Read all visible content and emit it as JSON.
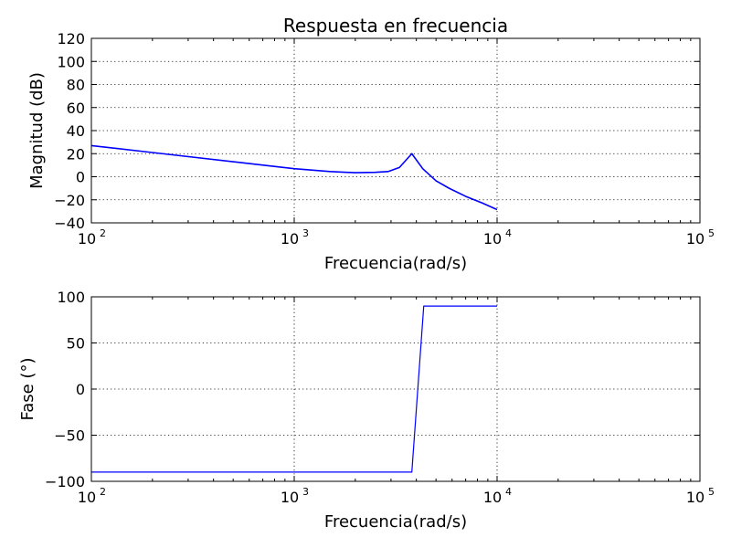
{
  "chart_data": [
    {
      "type": "line",
      "title": "Respuesta en frecuencia",
      "xlabel": "Frecuencia(rad/s)",
      "ylabel": "Magnitud (dB)",
      "xscale": "log",
      "xlim": [
        100,
        100000
      ],
      "ylim": [
        -40,
        120
      ],
      "x_ticks": [
        100,
        1000,
        10000,
        100000
      ],
      "x_tick_labels": [
        {
          "base": "10",
          "exp": "2"
        },
        {
          "base": "10",
          "exp": "3"
        },
        {
          "base": "10",
          "exp": "4"
        },
        {
          "base": "10",
          "exp": "5"
        }
      ],
      "y_ticks": [
        -40,
        -20,
        0,
        20,
        40,
        60,
        80,
        100,
        120
      ],
      "y_tick_labels": [
        "−40",
        "−20",
        "0",
        "20",
        "40",
        "60",
        "80",
        "100",
        "120"
      ],
      "grid": true,
      "color": "#0000ff",
      "series": [
        {
          "x": [
            100,
            200,
            500,
            1000,
            1500,
            2000,
            2500,
            2900,
            3300,
            3800,
            4300,
            5000,
            5800,
            7000,
            8500,
            10000
          ],
          "y": [
            27,
            21,
            13,
            7,
            4.5,
            3.5,
            3.8,
            4.5,
            8,
            20,
            7,
            -3.5,
            -10,
            -17,
            -23,
            -28.5
          ]
        }
      ]
    },
    {
      "type": "line",
      "title": "",
      "xlabel": "Frecuencia(rad/s)",
      "ylabel": "Fase (°)",
      "xscale": "log",
      "xlim": [
        100,
        100000
      ],
      "ylim": [
        -100,
        100
      ],
      "x_ticks": [
        100,
        1000,
        10000,
        100000
      ],
      "x_tick_labels": [
        {
          "base": "10",
          "exp": "2"
        },
        {
          "base": "10",
          "exp": "3"
        },
        {
          "base": "10",
          "exp": "4"
        },
        {
          "base": "10",
          "exp": "5"
        }
      ],
      "y_ticks": [
        -100,
        -50,
        0,
        50,
        100
      ],
      "y_tick_labels": [
        "−100",
        "−50",
        "0",
        "50",
        "100"
      ],
      "grid": true,
      "color": "#0000ff",
      "series": [
        {
          "x": [
            100,
            3800,
            4350,
            10000
          ],
          "y": [
            -90,
            -90,
            90,
            90
          ]
        }
      ]
    }
  ]
}
